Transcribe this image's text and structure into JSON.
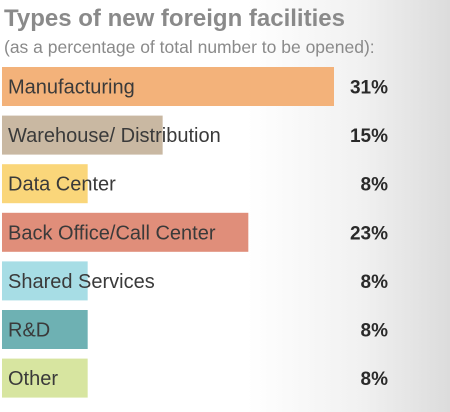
{
  "chart_data": {
    "type": "bar",
    "orientation": "horizontal",
    "title": "Types of new foreign facilities",
    "subtitle": "(as a percentage of total number to be opened):",
    "categories": [
      "Manufacturing",
      "Warehouse/ Distribution",
      "Data Center",
      "Back Office/Call Center",
      "Shared Services",
      "R&D",
      "Other"
    ],
    "values": [
      31,
      15,
      8,
      23,
      8,
      8,
      8
    ],
    "value_labels": [
      "31%",
      "15%",
      "8%",
      "23%",
      "8%",
      "8%",
      "8%"
    ],
    "colors": [
      "#f3b27a",
      "#c9b8a2",
      "#fad67a",
      "#e08e7a",
      "#a7dde5",
      "#6eb1b3",
      "#d7e5a0"
    ],
    "xlim": [
      0,
      40
    ],
    "grid": false,
    "legend": "none"
  }
}
